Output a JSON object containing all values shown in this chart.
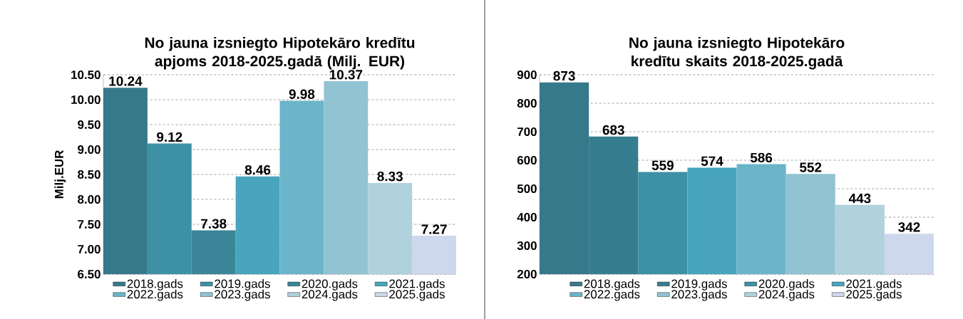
{
  "chart_data": [
    {
      "type": "bar",
      "title": "No jauna izsniegto Hipotekāro kredītu apjoms 2018-2025.gadā (Milj. EUR)",
      "ylabel": "Milj.EUR",
      "categories": [
        null
      ],
      "ylim": [
        6.5,
        10.5
      ],
      "yticks": [
        {
          "value": 6.5,
          "label": "6.50"
        },
        {
          "value": 7,
          "label": "7.00"
        },
        {
          "value": 7.5,
          "label": "7.50"
        },
        {
          "value": 8,
          "label": "8.00"
        },
        {
          "value": 8.5,
          "label": "8.50"
        },
        {
          "value": 9,
          "label": "9.00"
        },
        {
          "value": 9.5,
          "label": "9.50"
        },
        {
          "value": 10,
          "label": "10.00"
        },
        {
          "value": 10.5,
          "label": "10.50"
        }
      ],
      "grid": "y",
      "legend": "bottom",
      "data_labels": true,
      "series": [
        {
          "name": "2018.gads",
          "color": "#36798a",
          "values": [
            10.24
          ]
        },
        {
          "name": "2019.gads",
          "color": "#3e91a5",
          "values": [
            9.12
          ]
        },
        {
          "name": "2020.gads",
          "color": "#3a8597",
          "values": [
            7.38
          ]
        },
        {
          "name": "2021.gads",
          "color": "#48a5bd",
          "values": [
            8.46
          ]
        },
        {
          "name": "2022.gads",
          "color": "#6ab5ca",
          "values": [
            9.98
          ]
        },
        {
          "name": "2023.gads",
          "color": "#92c3d3",
          "values": [
            10.37
          ]
        },
        {
          "name": "2024.gads",
          "color": "#afd2dc",
          "values": [
            8.33
          ]
        },
        {
          "name": "2025.gads",
          "color": "#cdd8ec",
          "values": [
            7.27
          ]
        }
      ]
    },
    {
      "type": "bar",
      "title": "No jauna izsniegto Hipotekāro kredītu skaits 2018-2025.gadā",
      "categories": [
        null
      ],
      "ylim": [
        200,
        900
      ],
      "yticks": [
        200,
        300,
        400,
        500,
        600,
        700,
        800,
        900
      ],
      "grid": "y",
      "legend": "bottom",
      "data_labels": true,
      "series": [
        {
          "name": "2018.gads",
          "color": "#36798a",
          "values": [
            873
          ]
        },
        {
          "name": "2019.gads",
          "color": "#377d90",
          "values": [
            683
          ]
        },
        {
          "name": "2020.gads",
          "color": "#3e91a5",
          "values": [
            559
          ]
        },
        {
          "name": "2021.gads",
          "color": "#48a5bd",
          "values": [
            574
          ]
        },
        {
          "name": "2022.gads",
          "color": "#6ab5ca",
          "values": [
            586
          ]
        },
        {
          "name": "2023.gads",
          "color": "#92c3d3",
          "values": [
            552
          ]
        },
        {
          "name": "2024.gads",
          "color": "#afd2dc",
          "values": [
            443
          ]
        },
        {
          "name": "2025.gads",
          "color": "#cdd8ec",
          "values": [
            342
          ]
        }
      ]
    }
  ]
}
